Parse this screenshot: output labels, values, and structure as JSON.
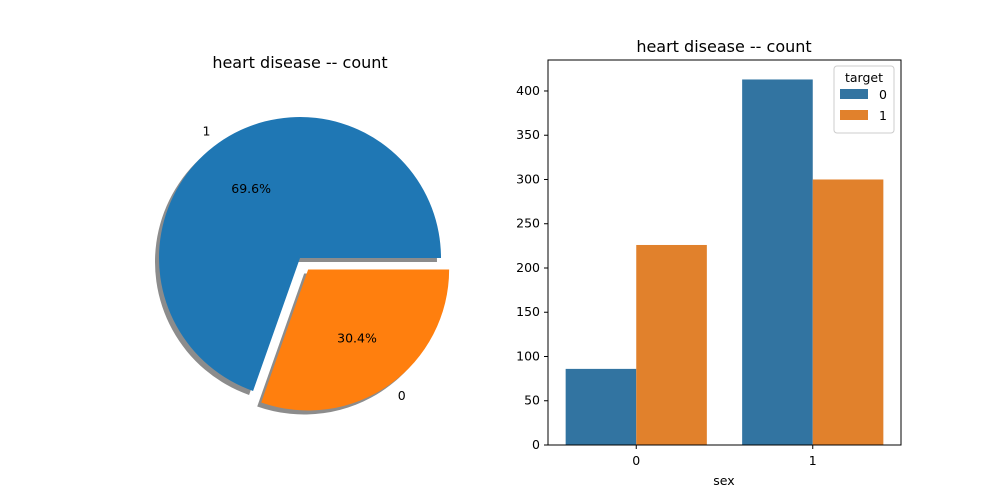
{
  "chart_data": [
    {
      "type": "pie",
      "title": "heart disease -- count",
      "slices": [
        {
          "label": "1",
          "value": 69.6,
          "pct_label": "69.6%",
          "color": "#1f77b4",
          "explode": 0
        },
        {
          "label": "0",
          "value": 30.4,
          "pct_label": "30.4%",
          "color": "#ff7f0e",
          "explode": 0.1
        }
      ],
      "shadow": true
    },
    {
      "type": "bar",
      "title": "heart disease -- count",
      "xlabel": "sex",
      "ylabel": "",
      "categories": [
        "0",
        "1"
      ],
      "series": [
        {
          "name": "0",
          "values": [
            86,
            413
          ],
          "color": "#3274a1"
        },
        {
          "name": "1",
          "values": [
            226,
            300
          ],
          "color": "#e1812c"
        }
      ],
      "ylim": [
        0,
        435
      ],
      "yticks": [
        0,
        50,
        100,
        150,
        200,
        250,
        300,
        350,
        400
      ],
      "legend": {
        "title": "target",
        "position": "top-right"
      },
      "grid": false
    }
  ]
}
